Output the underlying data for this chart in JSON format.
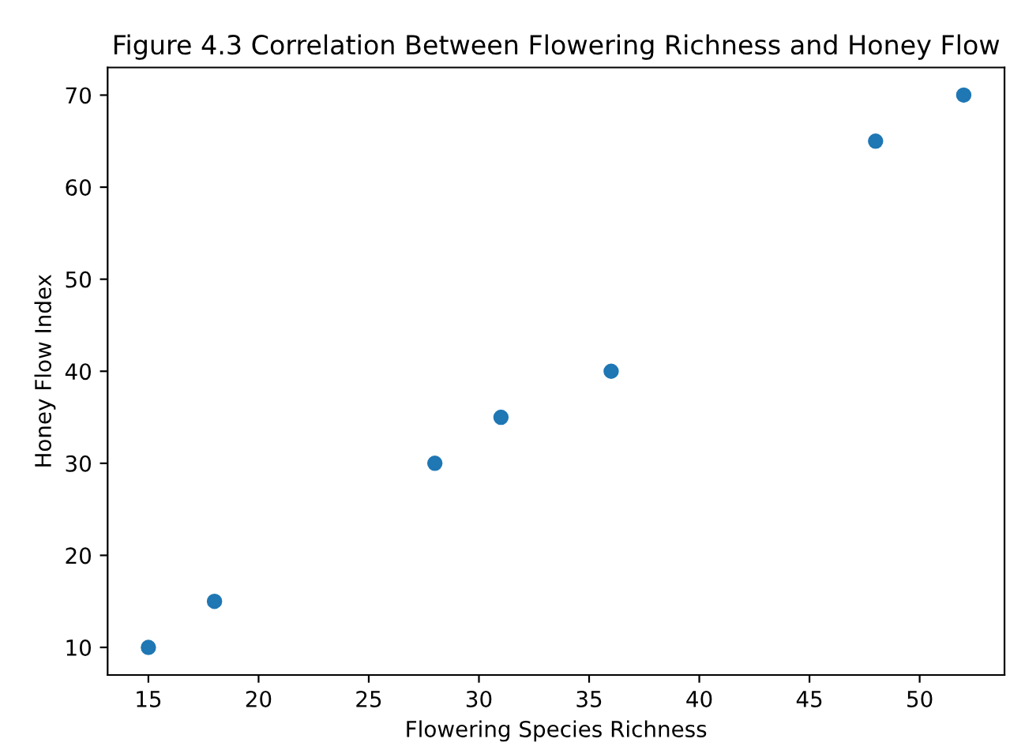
{
  "chart_data": {
    "type": "scatter",
    "title": "Figure 4.3 Correlation Between Flowering Richness and Honey Flow",
    "xlabel": "Flowering Species Richness",
    "ylabel": "Honey Flow Index",
    "x": [
      15,
      18,
      28,
      31,
      36,
      48,
      52
    ],
    "series": [
      {
        "color": "#1f77b4",
        "values": [
          10,
          15,
          30,
          35,
          40,
          65,
          70
        ]
      }
    ],
    "xlim": [
      13.15,
      53.85
    ],
    "xticks": [
      15,
      20,
      25,
      30,
      35,
      40,
      45,
      50
    ],
    "ylim": [
      7,
      73
    ],
    "yticks": [
      10,
      20,
      30,
      40,
      50,
      60,
      70
    ],
    "marker": "circle",
    "grid": false
  }
}
